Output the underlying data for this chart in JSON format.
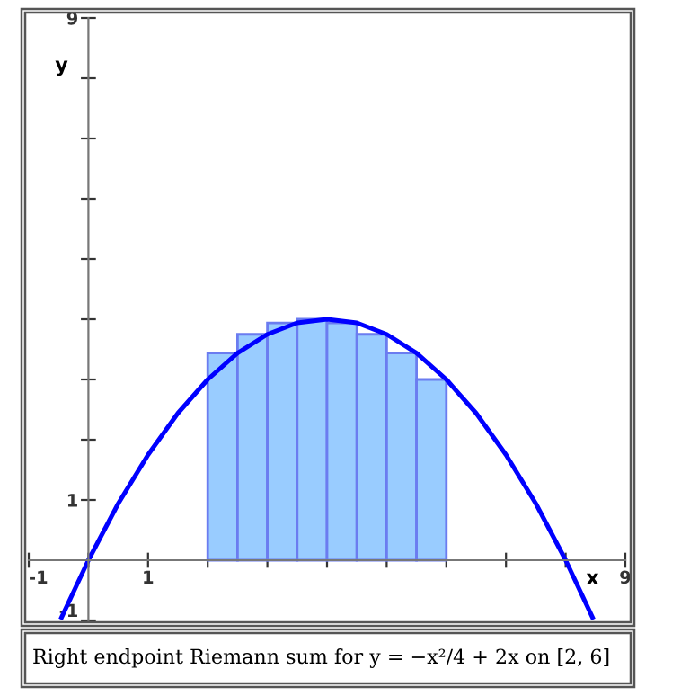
{
  "chart_data": {
    "type": "bar",
    "xlabel": "x",
    "ylabel": "y",
    "annotations": [
      "Right endpoint Riemann sum for y = −x²/4 + 2x on [2, 6]"
    ],
    "series": [
      {
        "color": "#99ccff",
        "x": [
          2.25,
          2.75,
          3.25,
          3.75,
          4.25,
          4.75,
          5.25,
          5.75
        ],
        "values": [
          3.44,
          3.75,
          3.94,
          4,
          3.94,
          3.75,
          3.44,
          3
        ]
      },
      {
        "type": "line",
        "color": "#0000ff",
        "x": [
          -0.45,
          0,
          0.5,
          1,
          1.5,
          2,
          2.5,
          3,
          3.5,
          4,
          4.5,
          5,
          5.5,
          6,
          6.5,
          7,
          7.5,
          8,
          8.45
        ],
        "values": [
          -0.95,
          0,
          0.94,
          1.75,
          2.44,
          3,
          3.44,
          3.75,
          3.94,
          4,
          3.94,
          3.75,
          3.44,
          3,
          2.44,
          1.75,
          0.94,
          0,
          -0.95
        ]
      }
    ],
    "xlim": [
      -1,
      9
    ],
    "ylim": [
      -1,
      9
    ],
    "xticks": [
      -1,
      {
        "value": 0,
        "label": null
      },
      {
        "value": 1,
        "label": "1"
      },
      {
        "value": 2,
        "label": null
      },
      {
        "value": 3,
        "label": null
      },
      {
        "value": 4,
        "label": null
      },
      {
        "value": 5,
        "label": null
      },
      {
        "value": 6,
        "label": null
      },
      {
        "value": 7,
        "label": null
      },
      {
        "value": 8,
        "label": null
      },
      9
    ],
    "yticks": [
      -1,
      {
        "value": 1,
        "label": "1"
      },
      {
        "value": 2,
        "label": null
      },
      {
        "value": 3,
        "label": null
      },
      {
        "value": 4,
        "label": null
      },
      {
        "value": 5,
        "label": null
      },
      {
        "value": 6,
        "label": null
      },
      {
        "value": 7,
        "label": null
      },
      {
        "value": 8,
        "label": null
      },
      9
    ],
    "grid": false,
    "legend": false
  }
}
